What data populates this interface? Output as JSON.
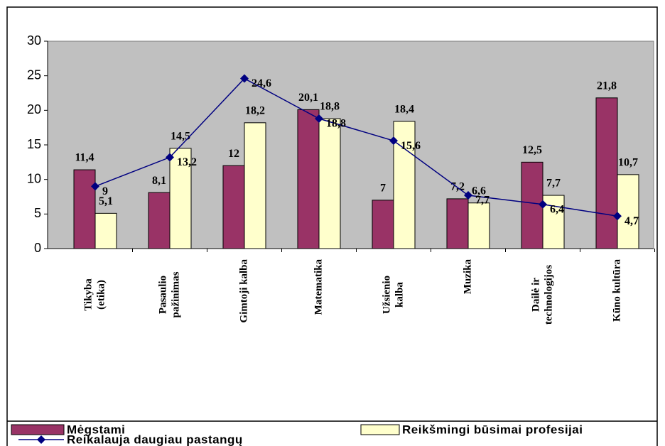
{
  "chart_data": {
    "type": "bar",
    "categories": [
      [
        "Tikyba",
        "(etika)"
      ],
      [
        "Pasaulio",
        "pažinimas"
      ],
      [
        "Gimtoji kalba"
      ],
      [
        "Matematika"
      ],
      [
        "Užsienio",
        "kalba"
      ],
      [
        "Muzika"
      ],
      [
        "Dailė ir",
        "technologijos"
      ],
      [
        "Kūno kultūra"
      ]
    ],
    "series": [
      {
        "name": "Mėgstami",
        "type": "bar",
        "color": "#993366",
        "values": [
          11.4,
          8.1,
          12,
          20.1,
          7,
          7.2,
          12.5,
          21.8
        ],
        "value_labels": [
          "11,4",
          "8,1",
          "12",
          "20,1",
          "7",
          "7,2",
          "12,5",
          "21,8"
        ]
      },
      {
        "name": "Reikšmingi būsimai profesijai",
        "type": "bar",
        "color": "#FFFFCC",
        "values": [
          5.1,
          14.5,
          18.2,
          18.8,
          18.4,
          6.6,
          7.7,
          10.7
        ],
        "value_labels": [
          "5,1",
          "14,5",
          "18,2",
          "18,8",
          "18,4",
          "6,6",
          "7,7",
          "10,7"
        ]
      },
      {
        "name": "Reikalauja daugiau pastangų",
        "type": "line",
        "color": "#000080",
        "values": [
          9,
          13.2,
          24.6,
          18.8,
          15.6,
          7.7,
          6.4,
          4.7
        ],
        "value_labels": [
          "9",
          "13,2",
          "24,6",
          "18,8",
          "15,6",
          "7,7",
          "6,4",
          "4,7"
        ]
      }
    ],
    "ylim": [
      0,
      30
    ],
    "yticks": [
      0,
      5,
      10,
      15,
      20,
      25,
      30
    ],
    "plot_background": "#C0C0C0",
    "legend": "bottom"
  }
}
